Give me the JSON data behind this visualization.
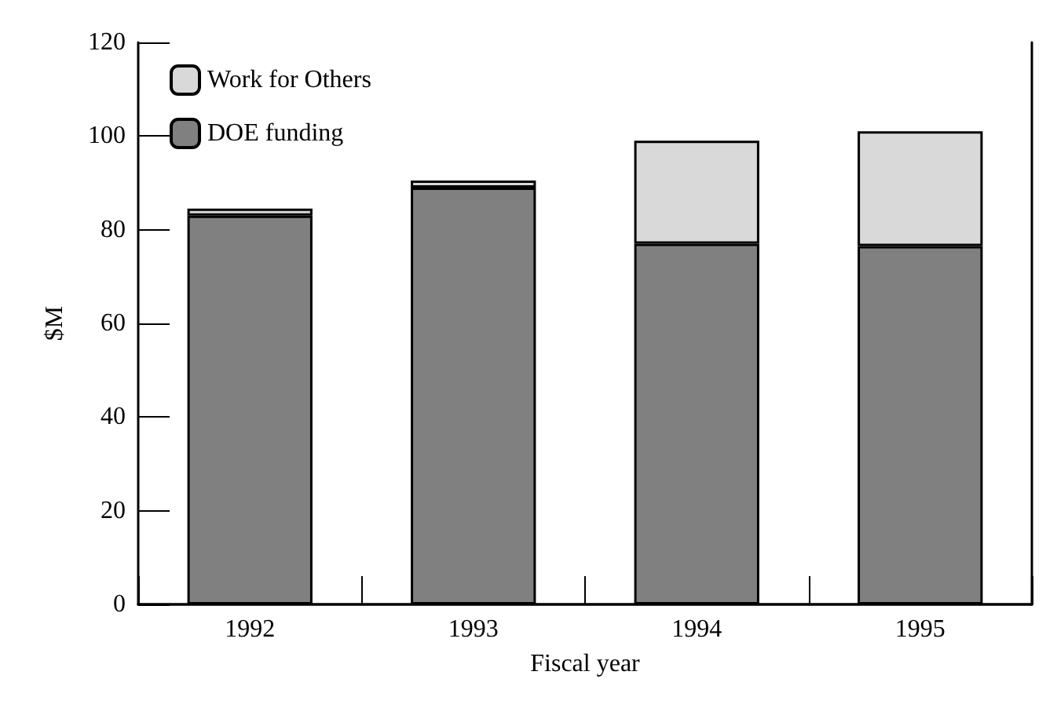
{
  "chart_data": {
    "type": "bar",
    "stacked": true,
    "xlabel": "Fiscal year",
    "ylabel": "$M",
    "categories": [
      "1992",
      "1993",
      "1994",
      "1995"
    ],
    "series": [
      {
        "name": "DOE funding",
        "color": "#808080",
        "values": [
          83,
          89,
          77,
          76.5
        ]
      },
      {
        "name": "Work for Others",
        "color": "#d9d9d9",
        "values": [
          1.5,
          1.5,
          22,
          24.5
        ]
      }
    ],
    "ylim": [
      0,
      120
    ],
    "yticks": [
      0,
      20,
      40,
      60,
      80,
      100,
      120
    ],
    "grid": false,
    "legend": "top left"
  }
}
